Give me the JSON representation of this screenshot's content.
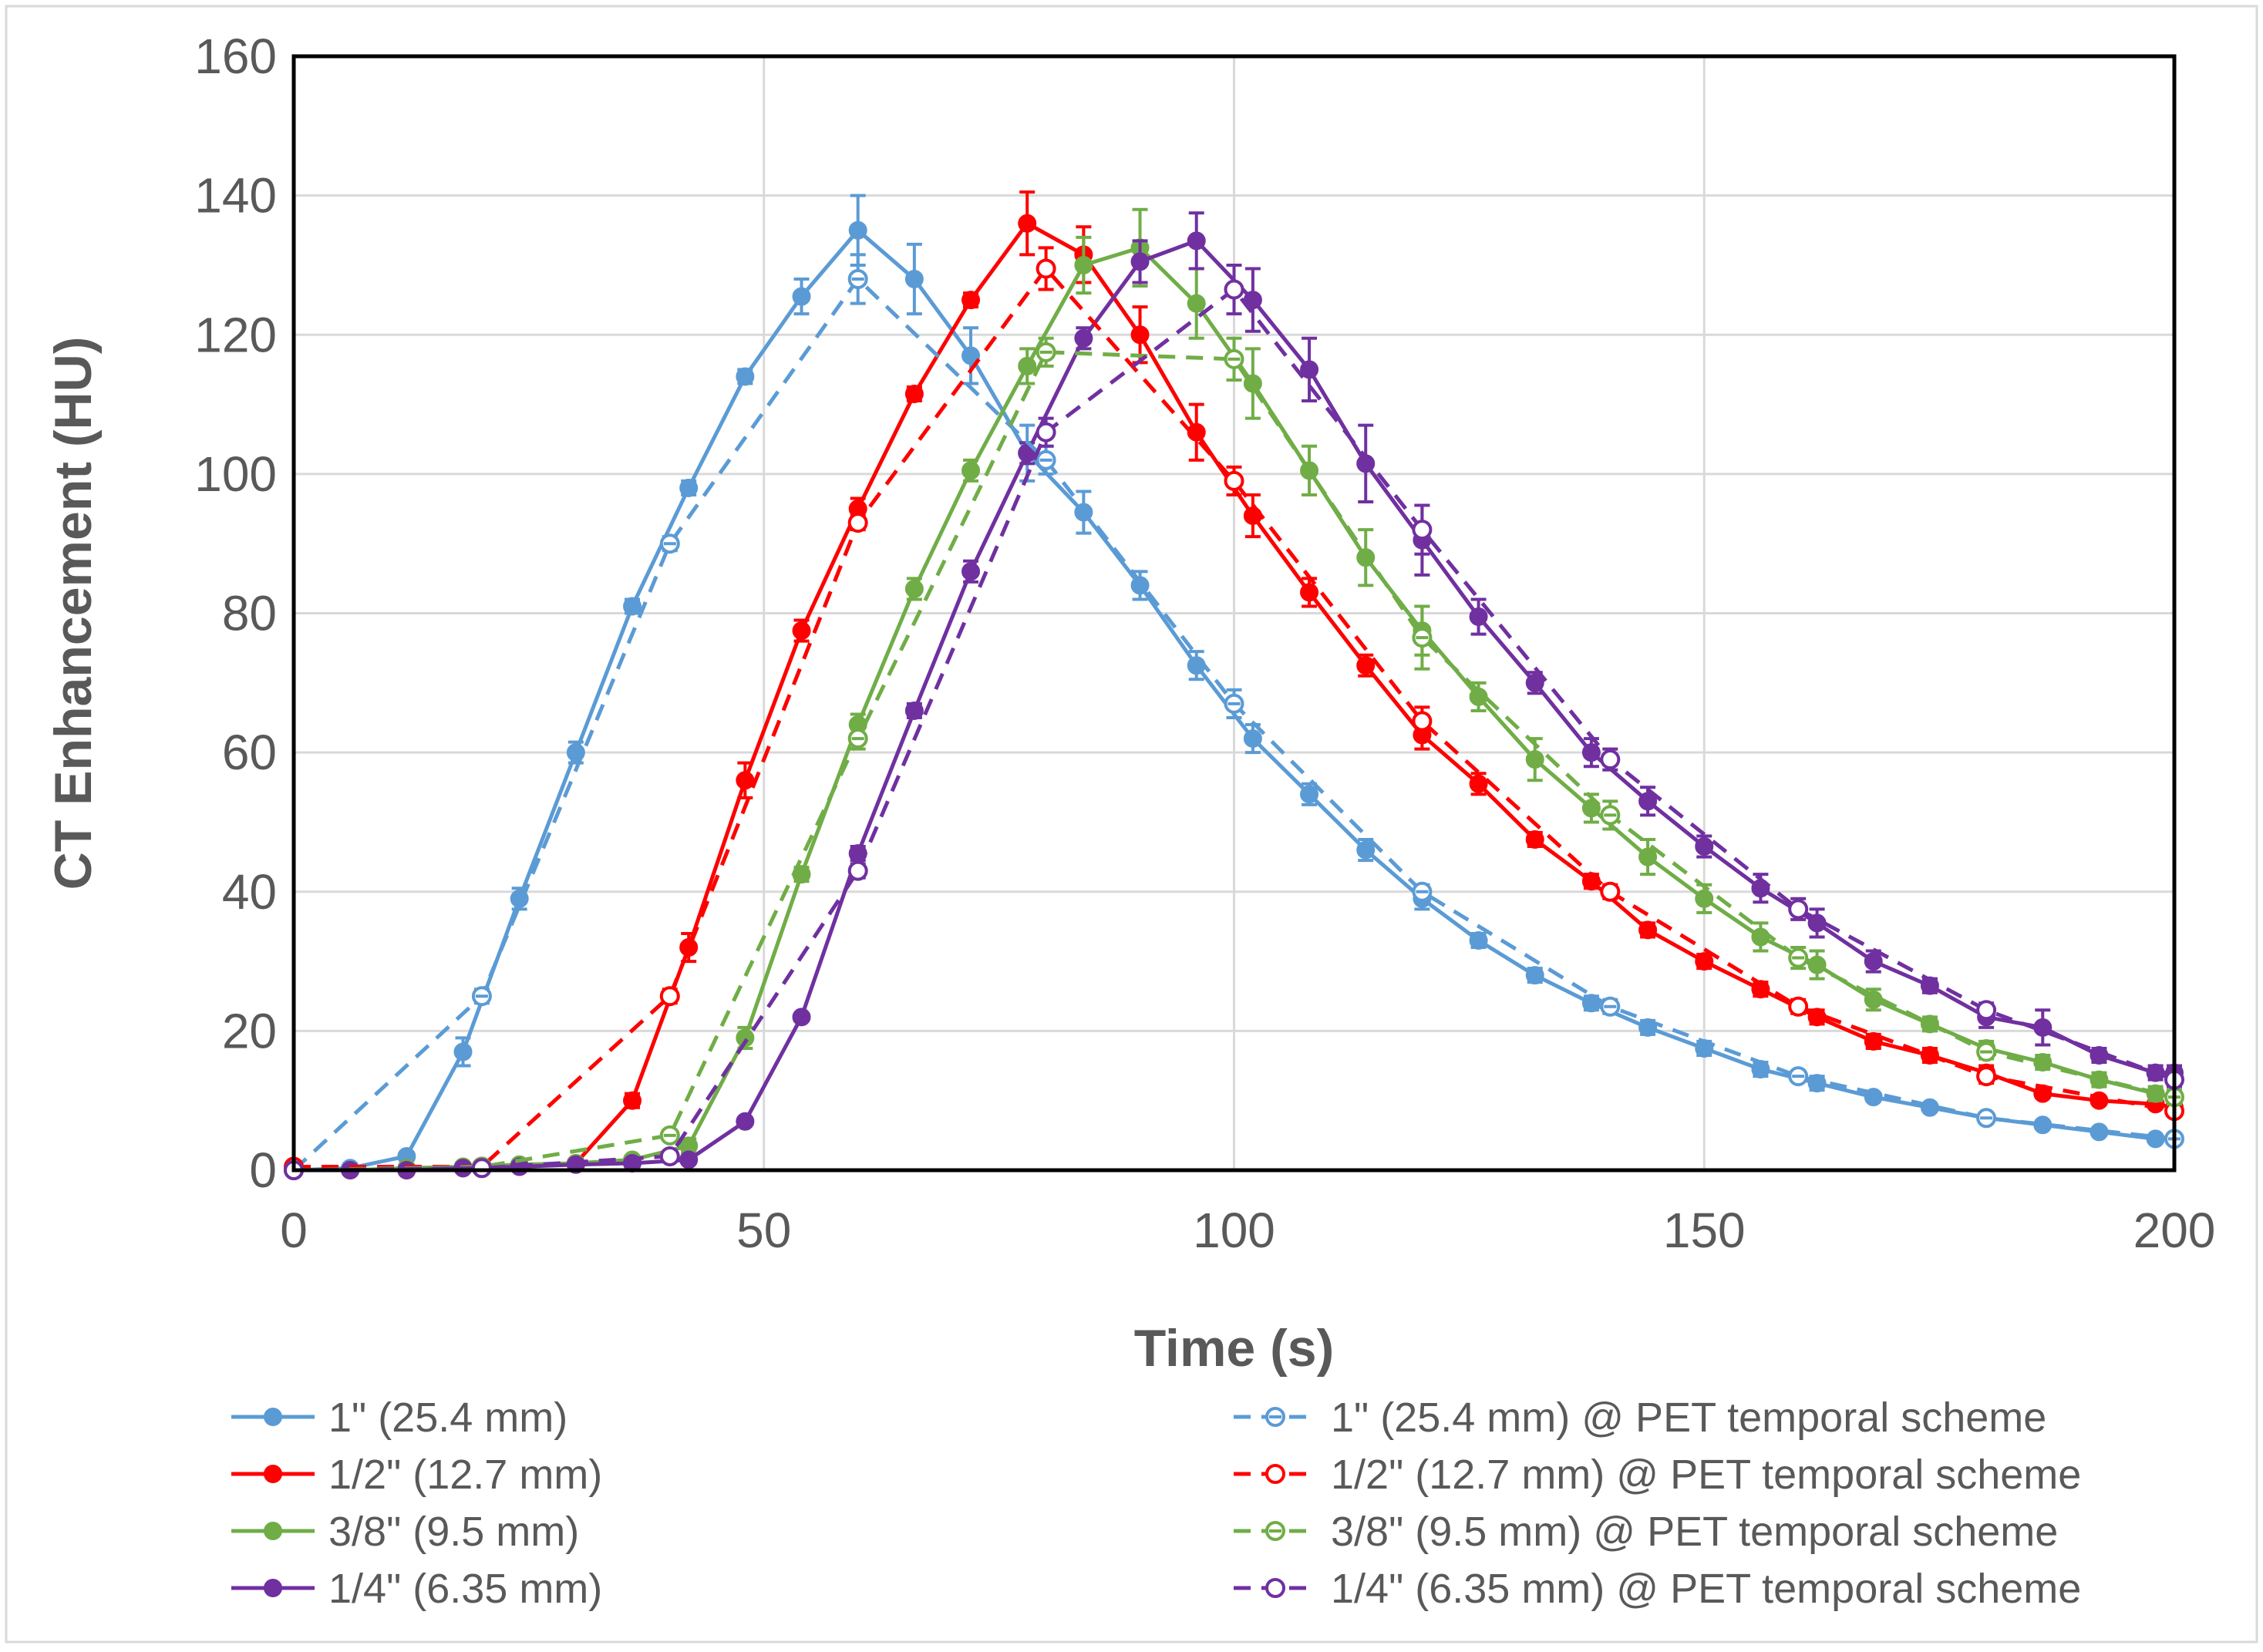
{
  "chart_data": {
    "type": "line",
    "title": "",
    "xlabel": "Time (s)",
    "ylabel": "CT Enhancement (HU)",
    "xlim": [
      0,
      200
    ],
    "ylim": [
      0,
      160
    ],
    "x_ticks": [
      0,
      50,
      100,
      150,
      200
    ],
    "y_ticks": [
      0,
      20,
      40,
      60,
      80,
      100,
      120,
      140,
      160
    ],
    "grid": true,
    "legend_position": "bottom",
    "series": [
      {
        "name": "1\" (25.4 mm)",
        "color": "#5b9bd5",
        "style": "solid",
        "marker": "filled-circle",
        "x": [
          0,
          6,
          12,
          18,
          24,
          30,
          36,
          42,
          48,
          54,
          60,
          66,
          72,
          78,
          84,
          90,
          96,
          102,
          108,
          114,
          120,
          126,
          132,
          138,
          144,
          150,
          156,
          162,
          168,
          174,
          180,
          186,
          192,
          198,
          200
        ],
        "y": [
          0,
          0.3,
          2,
          17,
          39,
          60,
          81,
          98,
          114,
          125.5,
          135,
          128,
          117,
          103,
          94.5,
          84,
          72.5,
          62,
          54,
          46,
          39,
          33,
          28,
          24,
          20.5,
          17.5,
          14.5,
          12.5,
          10.5,
          9,
          7.5,
          6.5,
          5.5,
          4.5,
          4.5
        ],
        "err": [
          0,
          0,
          0,
          2,
          1.5,
          1.5,
          1,
          1,
          1,
          2.5,
          5,
          5,
          4,
          4,
          3,
          2,
          2,
          2,
          1.5,
          1.5,
          1.5,
          1,
          1,
          1,
          1,
          1,
          1,
          1,
          0.5,
          0.5,
          0.5,
          0.5,
          0.5,
          0.5,
          0.5
        ]
      },
      {
        "name": "1/2\" (12.7 mm)",
        "color": "#ff0000",
        "style": "solid",
        "marker": "filled-circle",
        "x": [
          0,
          6,
          12,
          18,
          24,
          30,
          36,
          42,
          48,
          54,
          60,
          66,
          72,
          78,
          84,
          90,
          96,
          102,
          108,
          114,
          120,
          126,
          132,
          138,
          144,
          150,
          156,
          162,
          168,
          174,
          180,
          186,
          192,
          198,
          200
        ],
        "y": [
          0,
          0,
          0,
          0.3,
          0.5,
          1,
          10,
          32,
          56,
          77.5,
          95,
          111.5,
          125,
          136,
          131.5,
          120,
          106,
          94,
          83,
          72.5,
          62.5,
          55.5,
          47.5,
          41.5,
          34.5,
          30,
          26,
          22,
          18.5,
          16.5,
          14,
          11,
          10,
          9.5,
          9
        ],
        "err": [
          0,
          0,
          0,
          0,
          0,
          0,
          1,
          2,
          2.5,
          1.5,
          1.5,
          1,
          1,
          4.5,
          4,
          4,
          4,
          3,
          2,
          1.5,
          2,
          1.5,
          1,
          1,
          1,
          1,
          1,
          1,
          1,
          1,
          1,
          0.5,
          0.5,
          0.5,
          0.5
        ]
      },
      {
        "name": "3/8\" (9.5 mm)",
        "color": "#70ad47",
        "style": "solid",
        "marker": "filled-circle",
        "x": [
          0,
          6,
          12,
          18,
          24,
          30,
          36,
          42,
          48,
          54,
          60,
          66,
          72,
          78,
          84,
          90,
          96,
          102,
          108,
          114,
          120,
          126,
          132,
          138,
          144,
          150,
          156,
          162,
          168,
          174,
          180,
          186,
          192,
          198,
          200
        ],
        "y": [
          0,
          0,
          0.3,
          0.5,
          0.8,
          1,
          1.5,
          3.5,
          19,
          42.5,
          64,
          83.5,
          100.5,
          115.5,
          130,
          132.5,
          124.5,
          113,
          100.5,
          88,
          77.5,
          68,
          59,
          52,
          45,
          39,
          33.5,
          29.5,
          24.5,
          21,
          17.5,
          15.5,
          13,
          11,
          10.5
        ],
        "err": [
          0,
          0,
          0,
          0,
          0,
          0,
          0,
          1,
          1.5,
          1,
          1.5,
          1.5,
          1.5,
          2.5,
          4,
          5.5,
          5,
          5,
          3.5,
          4,
          3.5,
          2,
          3,
          2,
          2.5,
          2,
          2,
          2,
          1.5,
          1,
          1,
          1,
          1,
          1,
          1
        ]
      },
      {
        "name": "1/4\" (6.35 mm)",
        "color": "#7030a0",
        "style": "solid",
        "marker": "filled-circle",
        "x": [
          0,
          6,
          12,
          18,
          24,
          30,
          36,
          42,
          48,
          54,
          60,
          66,
          72,
          78,
          84,
          90,
          96,
          102,
          108,
          114,
          120,
          126,
          132,
          138,
          144,
          150,
          156,
          162,
          168,
          174,
          180,
          186,
          192,
          198,
          200
        ],
        "y": [
          0,
          0,
          0,
          0.3,
          0.5,
          0.8,
          1,
          1.5,
          7,
          22,
          45.5,
          66,
          86,
          103,
          119.5,
          130.5,
          133.5,
          125,
          115,
          101.5,
          90.5,
          79.5,
          70,
          60,
          53,
          46.5,
          40.5,
          35.5,
          30,
          26.5,
          22,
          20.5,
          16.5,
          14,
          14
        ],
        "err": [
          0,
          0,
          0,
          0,
          0,
          0,
          0,
          0.5,
          0.5,
          0.5,
          1,
          1,
          1.5,
          1.5,
          1.5,
          3,
          4,
          4.5,
          4.5,
          5.5,
          5,
          2.5,
          1.5,
          2,
          2,
          1.5,
          2,
          2,
          1.5,
          1,
          1.5,
          2.5,
          1,
          1,
          1
        ]
      },
      {
        "name": "1\" (25.4 mm) @ PET temporal scheme",
        "color": "#5b9bd5",
        "style": "dashed",
        "marker": "circle-with-bar",
        "x": [
          0,
          20,
          40,
          60,
          80,
          100,
          120,
          140,
          160,
          180,
          200
        ],
        "y": [
          0,
          25,
          90,
          128,
          102,
          67,
          40,
          23.5,
          13.5,
          7.5,
          4.5
        ],
        "err": [
          0,
          1,
          1,
          3.5,
          2,
          2,
          1,
          1,
          0.5,
          0.5,
          0.5
        ]
      },
      {
        "name": "1/2\" (12.7 mm) @ PET temporal scheme",
        "color": "#ff0000",
        "style": "dashed",
        "marker": "open-circle",
        "x": [
          0,
          20,
          40,
          60,
          80,
          100,
          120,
          140,
          160,
          180,
          200
        ],
        "y": [
          0.5,
          0.5,
          25,
          93,
          129.5,
          99,
          64.5,
          40,
          23.5,
          13.5,
          8.5
        ],
        "err": [
          0,
          0,
          1,
          1,
          3,
          2,
          2,
          1,
          1,
          1,
          0.5
        ]
      },
      {
        "name": "3/8\" (9.5 mm) @ PET temporal scheme",
        "color": "#70ad47",
        "style": "dashed",
        "marker": "circle-with-bar",
        "x": [
          0,
          20,
          40,
          60,
          80,
          100,
          120,
          140,
          160,
          180,
          200
        ],
        "y": [
          0,
          0.5,
          5,
          62,
          117.5,
          116.5,
          76.5,
          51,
          30.5,
          17,
          10.5
        ],
        "err": [
          0,
          0,
          0.5,
          1.5,
          2,
          3,
          4.5,
          2,
          1.5,
          1,
          1
        ]
      },
      {
        "name": "1/4\" (6.35 mm) @ PET temporal scheme",
        "color": "#7030a0",
        "style": "dashed",
        "marker": "open-circle",
        "x": [
          0,
          20,
          40,
          60,
          80,
          100,
          120,
          140,
          160,
          180,
          200
        ],
        "y": [
          0,
          0.3,
          2,
          43,
          106,
          126.5,
          92,
          59,
          37.5,
          23,
          13
        ],
        "err": [
          0,
          0,
          0.5,
          1,
          2,
          3.5,
          3.5,
          1.5,
          1.5,
          1,
          1
        ]
      }
    ]
  }
}
